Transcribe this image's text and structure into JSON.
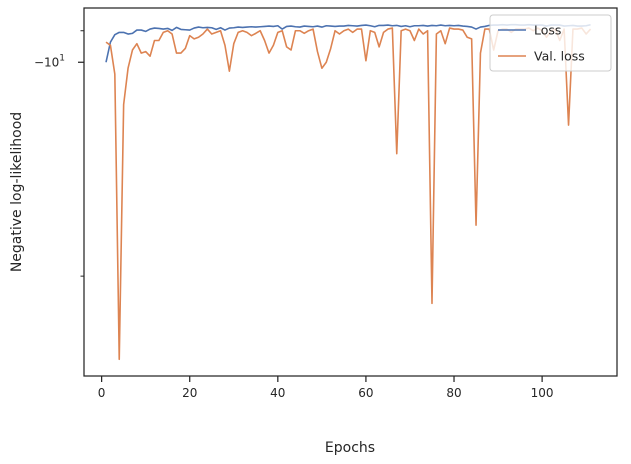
{
  "chart_data": {
    "type": "line",
    "xlabel": "Epochs",
    "ylabel": "Negative log-likelihood",
    "yscale": "symlog",
    "xlim": [
      -4,
      117
    ],
    "x_ticks": [
      0,
      20,
      40,
      60,
      80,
      100
    ],
    "y_tick_labels": [
      {
        "value": -10,
        "text": "−10"
      }
    ],
    "legend_position": "top-right",
    "grid": false,
    "series": [
      {
        "name": "Loss",
        "color": "#4c72b0",
        "x": [
          1,
          2,
          3,
          4,
          5,
          6,
          7,
          8,
          9,
          10,
          11,
          12,
          13,
          14,
          15,
          16,
          17,
          18,
          19,
          20,
          21,
          22,
          23,
          24,
          25,
          26,
          27,
          28,
          29,
          30,
          31,
          32,
          33,
          34,
          35,
          36,
          37,
          38,
          39,
          40,
          41,
          42,
          43,
          44,
          45,
          46,
          47,
          48,
          49,
          50,
          51,
          52,
          53,
          54,
          55,
          56,
          57,
          58,
          59,
          60,
          61,
          62,
          63,
          64,
          65,
          66,
          67,
          68,
          69,
          70,
          71,
          72,
          73,
          74,
          75,
          76,
          77,
          78,
          79,
          80,
          81,
          82,
          83,
          84,
          85,
          86,
          87,
          88,
          89,
          90,
          91,
          92,
          93,
          94,
          95,
          96,
          97,
          98,
          99,
          100,
          101,
          102,
          103,
          104,
          105,
          106,
          107,
          108,
          109,
          110,
          111
        ],
        "values": [
          -10.0,
          -9.35,
          -9.12,
          -9.05,
          -9.05,
          -9.1,
          -9.08,
          -8.98,
          -8.98,
          -9.02,
          -8.95,
          -8.92,
          -8.93,
          -8.95,
          -8.93,
          -8.99,
          -8.9,
          -8.96,
          -8.97,
          -8.98,
          -8.92,
          -8.89,
          -8.91,
          -8.9,
          -8.91,
          -8.96,
          -8.91,
          -8.98,
          -8.92,
          -8.91,
          -8.89,
          -8.9,
          -8.89,
          -8.88,
          -8.89,
          -8.88,
          -8.87,
          -8.86,
          -8.87,
          -8.85,
          -8.95,
          -8.87,
          -8.86,
          -8.88,
          -8.89,
          -8.86,
          -8.87,
          -8.88,
          -8.86,
          -8.89,
          -8.85,
          -8.86,
          -8.87,
          -8.86,
          -8.86,
          -8.84,
          -8.85,
          -8.86,
          -8.84,
          -8.83,
          -8.85,
          -8.88,
          -8.84,
          -8.84,
          -8.83,
          -8.85,
          -8.84,
          -8.87,
          -8.85,
          -8.88,
          -8.85,
          -8.85,
          -8.84,
          -8.86,
          -8.84,
          -8.85,
          -8.83,
          -8.85,
          -8.84,
          -8.85,
          -8.84,
          -8.86,
          -8.87,
          -8.89,
          -8.95,
          -8.89,
          -8.87,
          -8.84,
          -8.83,
          -8.83,
          -8.82,
          -8.83,
          -8.82,
          -8.82,
          -8.83,
          -8.83,
          -8.82,
          -8.83,
          -8.83,
          -8.83,
          -8.86,
          -8.83,
          -8.83,
          -8.83,
          -8.86,
          -8.85,
          -8.84,
          -8.86,
          -8.86,
          -8.85,
          -8.82
        ]
      },
      {
        "name": "Val. loss",
        "color": "#dd8452",
        "x": [
          1,
          2,
          3,
          4,
          5,
          6,
          7,
          8,
          9,
          10,
          11,
          12,
          13,
          14,
          15,
          16,
          17,
          18,
          19,
          20,
          21,
          22,
          23,
          24,
          25,
          26,
          27,
          28,
          29,
          30,
          31,
          32,
          33,
          34,
          35,
          36,
          37,
          38,
          39,
          40,
          41,
          42,
          43,
          44,
          45,
          46,
          47,
          48,
          49,
          50,
          51,
          52,
          53,
          54,
          55,
          56,
          57,
          58,
          59,
          60,
          61,
          62,
          63,
          64,
          65,
          66,
          67,
          68,
          69,
          70,
          71,
          72,
          73,
          74,
          75,
          76,
          77,
          78,
          79,
          80,
          81,
          82,
          83,
          84,
          85,
          86,
          87,
          88,
          89,
          90,
          91,
          92,
          93,
          94,
          95,
          96,
          97,
          98,
          99,
          100,
          101,
          102,
          103,
          104,
          105,
          106,
          107,
          108,
          109,
          110,
          111
        ],
        "values": [
          -9.35,
          -9.45,
          -10.4,
          -26.0,
          -11.5,
          -10.2,
          -9.6,
          -9.4,
          -9.7,
          -9.65,
          -9.8,
          -9.3,
          -9.3,
          -9.05,
          -9.0,
          -9.1,
          -9.7,
          -9.7,
          -9.55,
          -9.15,
          -9.25,
          -9.2,
          -9.1,
          -8.95,
          -9.1,
          -9.05,
          -9.0,
          -9.45,
          -10.3,
          -9.4,
          -9.05,
          -9.0,
          -9.05,
          -9.15,
          -9.08,
          -9.0,
          -9.3,
          -9.7,
          -9.45,
          -9.05,
          -9.0,
          -9.5,
          -9.6,
          -9.0,
          -9.0,
          -9.08,
          -9.0,
          -8.95,
          -9.65,
          -10.2,
          -10.0,
          -9.55,
          -9.0,
          -9.1,
          -9.0,
          -8.95,
          -9.05,
          -8.95,
          -8.95,
          -9.95,
          -9.0,
          -9.05,
          -9.5,
          -9.05,
          -8.95,
          -8.92,
          -13.5,
          -9.0,
          -8.95,
          -9.0,
          -9.3,
          -8.95,
          -9.1,
          -9.0,
          -21.8,
          -9.1,
          -9.0,
          -9.4,
          -8.92,
          -8.95,
          -8.95,
          -8.98,
          -9.2,
          -9.25,
          -17.0,
          -9.7,
          -8.95,
          -8.95,
          -9.6,
          -9.0,
          -8.95,
          -8.95,
          -9.05,
          -8.95,
          -8.95,
          -8.95,
          -8.92,
          -9.0,
          -8.92,
          -9.0,
          -9.2,
          -9.0,
          -8.95,
          -9.3,
          -8.95,
          -12.3,
          -8.95,
          -8.95,
          -8.92,
          -9.1,
          -8.95
        ]
      }
    ]
  }
}
